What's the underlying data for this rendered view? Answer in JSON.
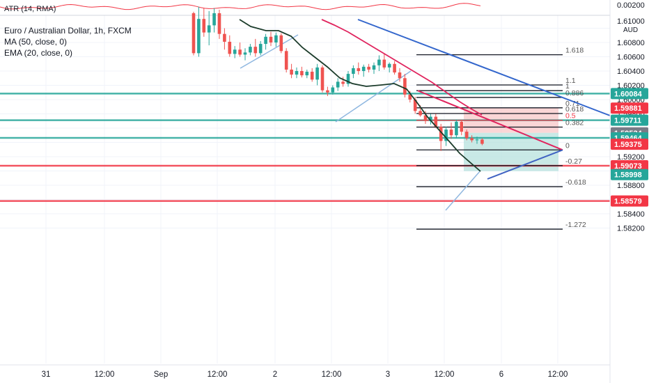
{
  "indicator": {
    "atr_label": "ATR (14, RMA)",
    "atr_value": "0.00200"
  },
  "legend": {
    "title": "Euro / Australian Dollar, 1h, FXCM",
    "ma": "MA (50, close, 0)",
    "ema": "EMA (20, close, 0)"
  },
  "currency": "AUD",
  "colors": {
    "up": "#26a69a",
    "down": "#ef5350",
    "ma": "#1b3b2a",
    "ema": "#e0245e",
    "trend_blue": "#2962ff",
    "teal_level": "#26a69a",
    "red_level": "#f23645",
    "stop_zone": "#f8c8c8",
    "target_zone": "#b2dfdb"
  },
  "chart_data": {
    "type": "candlestick",
    "symbol": "EURAUD",
    "timeframe": "1h",
    "y_range": [
      1.5815,
      1.6125
    ],
    "price_ticks": [
      "1.61000",
      "1.60800",
      "1.60600",
      "1.60400",
      "1.60200",
      "1.60000",
      "1.59800",
      "1.59200",
      "1.58800",
      "1.58400",
      "1.58200"
    ],
    "x_ticks": [
      "31",
      "12:00",
      "Sep",
      "12:00",
      "2",
      "12:00",
      "3",
      "12:00",
      "6",
      "12:00"
    ],
    "candles_approx": [
      [
        1.6121,
        1.6123,
        1.6062,
        1.6065
      ],
      [
        1.6065,
        1.613,
        1.606,
        1.6113
      ],
      [
        1.6113,
        1.6128,
        1.6088,
        1.6094
      ],
      [
        1.6094,
        1.6124,
        1.6076,
        1.6104
      ],
      [
        1.6104,
        1.6128,
        1.6094,
        1.6121
      ],
      [
        1.6121,
        1.6126,
        1.6085,
        1.6092
      ],
      [
        1.6092,
        1.61,
        1.607,
        1.6081
      ],
      [
        1.6081,
        1.609,
        1.606,
        1.6064
      ],
      [
        1.6064,
        1.6075,
        1.6058,
        1.607
      ],
      [
        1.607,
        1.608,
        1.606,
        1.6063
      ],
      [
        1.6063,
        1.6072,
        1.6055,
        1.6066
      ],
      [
        1.6066,
        1.6078,
        1.6062,
        1.6074
      ],
      [
        1.6074,
        1.6085,
        1.606,
        1.6065
      ],
      [
        1.6065,
        1.6082,
        1.6062,
        1.6078
      ],
      [
        1.6078,
        1.6092,
        1.607,
        1.6088
      ],
      [
        1.6088,
        1.6095,
        1.6075,
        1.608
      ],
      [
        1.608,
        1.6094,
        1.6074,
        1.609
      ],
      [
        1.609,
        1.6093,
        1.6065,
        1.6068
      ],
      [
        1.6068,
        1.6072,
        1.6038,
        1.6042
      ],
      [
        1.6042,
        1.605,
        1.603,
        1.6035
      ],
      [
        1.6035,
        1.6045,
        1.603,
        1.604
      ],
      [
        1.604,
        1.6046,
        1.6031,
        1.6034
      ],
      [
        1.6034,
        1.6042,
        1.603,
        1.6039
      ],
      [
        1.6039,
        1.6044,
        1.6025,
        1.6028
      ],
      [
        1.6028,
        1.605,
        1.602,
        1.6045
      ],
      [
        1.6045,
        1.6048,
        1.601,
        1.6013
      ],
      [
        1.6013,
        1.6018,
        1.6005,
        1.601
      ],
      [
        1.601,
        1.602,
        1.6007,
        1.6017
      ],
      [
        1.6017,
        1.603,
        1.6012,
        1.6025
      ],
      [
        1.6025,
        1.6032,
        1.6018,
        1.6022
      ],
      [
        1.6022,
        1.604,
        1.6018,
        1.6036
      ],
      [
        1.6036,
        1.6048,
        1.603,
        1.6044
      ],
      [
        1.6044,
        1.6052,
        1.6035,
        1.604
      ],
      [
        1.604,
        1.6049,
        1.6032,
        1.6046
      ],
      [
        1.6046,
        1.605,
        1.6038,
        1.6042
      ],
      [
        1.6042,
        1.6052,
        1.6036,
        1.6048
      ],
      [
        1.6048,
        1.6062,
        1.604,
        1.6056
      ],
      [
        1.6056,
        1.6064,
        1.6042,
        1.6045
      ],
      [
        1.6045,
        1.6052,
        1.6038,
        1.605
      ],
      [
        1.605,
        1.6054,
        1.6035,
        1.6038
      ],
      [
        1.6038,
        1.6044,
        1.6025,
        1.603
      ],
      [
        1.603,
        1.6036,
        1.6003,
        1.6007
      ],
      [
        1.6007,
        1.6012,
        1.5996,
        1.6
      ],
      [
        1.6,
        1.6004,
        1.598,
        1.5984
      ],
      [
        1.5984,
        1.5992,
        1.5976,
        1.5978
      ],
      [
        1.5978,
        1.5984,
        1.5966,
        1.597
      ],
      [
        1.597,
        1.598,
        1.5965,
        1.5976
      ],
      [
        1.5976,
        1.598,
        1.596,
        1.5962
      ],
      [
        1.5962,
        1.5966,
        1.5928,
        1.5942
      ],
      [
        1.5942,
        1.5962,
        1.5935,
        1.5958
      ],
      [
        1.5958,
        1.5968,
        1.5945,
        1.595
      ],
      [
        1.595,
        1.5972,
        1.5946,
        1.5969
      ],
      [
        1.5969,
        1.5972,
        1.595,
        1.5955
      ],
      [
        1.5955,
        1.5958,
        1.5943,
        1.5946
      ],
      [
        1.5946,
        1.595,
        1.594,
        1.5943
      ],
      [
        1.5943,
        1.5948,
        1.5938,
        1.5944
      ],
      [
        1.5944,
        1.5946,
        1.5936,
        1.5938
      ]
    ],
    "fibonacci": {
      "levels": [
        {
          "label": "1.618",
          "price": 1.60628
        },
        {
          "label": "1.1",
          "price": 1.60205
        },
        {
          "label": "1",
          "price": 1.60125
        },
        {
          "label": "0.886",
          "price": 1.6003
        },
        {
          "label": "0.71",
          "price": 1.59885
        },
        {
          "label": "0.618",
          "price": 1.59805
        },
        {
          "label": "0.5",
          "price": 1.5971
        },
        {
          "label": "0.382",
          "price": 1.59615
        },
        {
          "label": "0",
          "price": 1.59295
        },
        {
          "label": "-0.27",
          "price": 1.59075
        },
        {
          "label": "-0.618",
          "price": 1.5878
        },
        {
          "label": "-1.272",
          "price": 1.58185
        }
      ]
    },
    "horizontal_levels": [
      {
        "price": 1.60084,
        "color": "teal"
      },
      {
        "price": 1.59711,
        "color": "teal"
      },
      {
        "price": 1.59464,
        "color": "teal"
      },
      {
        "price": 1.59073,
        "color": "red"
      },
      {
        "price": 1.58579,
        "color": "red"
      }
    ],
    "position": {
      "stop": 1.59881,
      "entry": 1.59534,
      "target": 1.58998,
      "last": 1.59375
    },
    "price_labels": [
      {
        "text": "1.60084",
        "color": "teal"
      },
      {
        "text": "1.59881",
        "color": "red"
      },
      {
        "text": "1.59711",
        "color": "teal"
      },
      {
        "text": "1.59534",
        "color": "gray"
      },
      {
        "text": "1.59464",
        "color": "teal"
      },
      {
        "text": "1.59375",
        "color": "red"
      },
      {
        "text": "1.59073",
        "color": "red"
      },
      {
        "text": "1.58998",
        "color": "teal"
      },
      {
        "text": "1.58579",
        "color": "red"
      }
    ]
  }
}
